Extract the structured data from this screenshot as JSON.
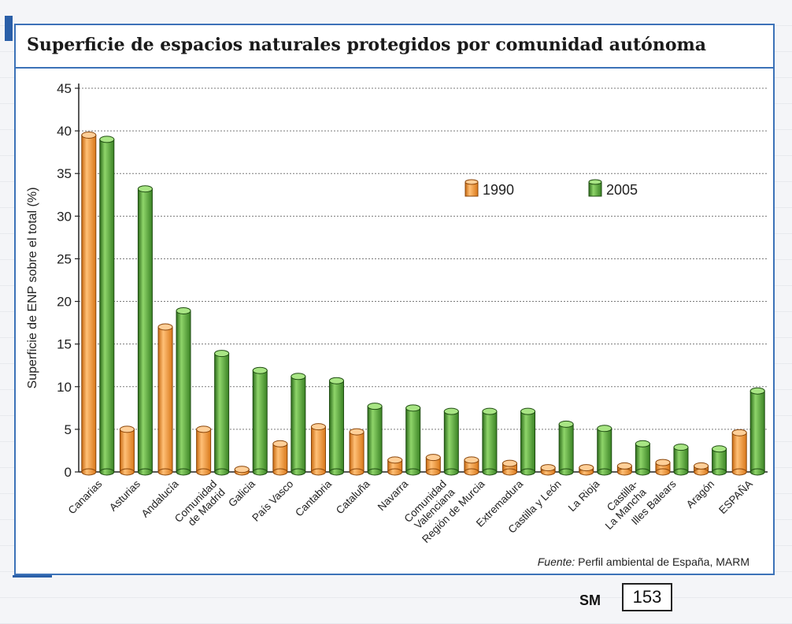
{
  "page": {
    "title": "Superficie de espacios naturales protegidos por comunidad autónoma",
    "source_label": "Fuente:",
    "source_text": "Perfil ambiental de España, MARM",
    "sm_label": "SM",
    "page_number": "153"
  },
  "chart_data": {
    "type": "bar",
    "title": "Superficie de espacios naturales protegidos por comunidad autónoma",
    "xlabel": "",
    "ylabel": "Superficie de ENP sobre el total (%)",
    "ylim": [
      0,
      45
    ],
    "yticks": [
      0,
      5,
      10,
      15,
      20,
      25,
      30,
      35,
      40,
      45
    ],
    "grid": true,
    "legend_position": "top-right",
    "categories": [
      [
        "Canarias"
      ],
      [
        "Asturias"
      ],
      [
        "Andalucía"
      ],
      [
        "Comunidad",
        "de Madrid"
      ],
      [
        "Galicia"
      ],
      [
        "País Vasco"
      ],
      [
        "Cantabria"
      ],
      [
        "Cataluña"
      ],
      [
        "Navarra"
      ],
      [
        "Comunidad",
        "Valenciana"
      ],
      [
        "Región de Murcia"
      ],
      [
        "Extremadura"
      ],
      [
        "Castilla y León"
      ],
      [
        "La Rioja"
      ],
      [
        "Castilla-",
        "La Mancha"
      ],
      [
        "Illes Balears"
      ],
      [
        "Aragón"
      ],
      [
        "ESPAÑA"
      ]
    ],
    "series": [
      {
        "name": "1990",
        "color": "#f39a3a",
        "values": [
          39.5,
          5.0,
          17.0,
          5.0,
          0.3,
          3.3,
          5.3,
          4.7,
          1.4,
          1.7,
          1.4,
          1.0,
          0.5,
          0.5,
          0.7,
          1.1,
          0.7,
          4.6
        ]
      },
      {
        "name": "2005",
        "color": "#4f9a35",
        "values": [
          39.0,
          33.2,
          18.9,
          13.9,
          11.9,
          11.2,
          10.7,
          7.7,
          7.5,
          7.1,
          7.1,
          7.1,
          5.6,
          5.1,
          3.3,
          2.9,
          2.7,
          9.5
        ]
      }
    ]
  }
}
